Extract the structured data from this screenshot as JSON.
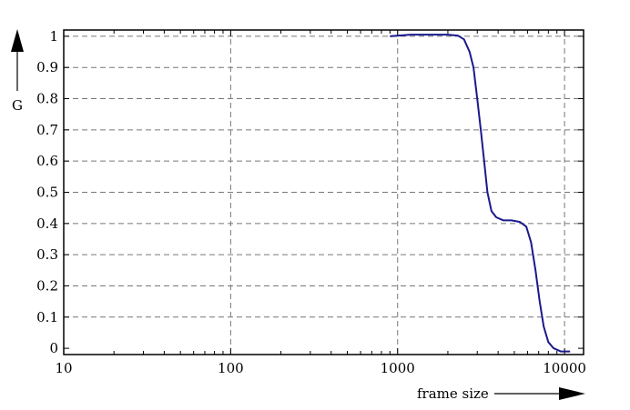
{
  "chart_data": {
    "type": "line",
    "xlabel": "frame size",
    "ylabel": "G",
    "x_scale": "log",
    "xlim": [
      10,
      13000
    ],
    "ylim": [
      -0.02,
      1.02
    ],
    "grid": true,
    "x_ticks": [
      {
        "value": 10,
        "label": "10"
      },
      {
        "value": 100,
        "label": "100"
      },
      {
        "value": 1000,
        "label": "1000"
      },
      {
        "value": 10000,
        "label": "10000"
      }
    ],
    "y_ticks": [
      {
        "value": 0,
        "label": "0"
      },
      {
        "value": 0.1,
        "label": "0.1"
      },
      {
        "value": 0.2,
        "label": "0.2"
      },
      {
        "value": 0.3,
        "label": "0.3"
      },
      {
        "value": 0.4,
        "label": "0.4"
      },
      {
        "value": 0.5,
        "label": "0.5"
      },
      {
        "value": 0.6,
        "label": "0.6"
      },
      {
        "value": 0.7,
        "label": "0.7"
      },
      {
        "value": 0.8,
        "label": "0.8"
      },
      {
        "value": 0.9,
        "label": "0.9"
      },
      {
        "value": 1,
        "label": "1"
      }
    ],
    "series": [
      {
        "color": "#1a1a8c",
        "points": [
          [
            900,
            1.0
          ],
          [
            1200,
            1.005
          ],
          [
            1600,
            1.005
          ],
          [
            2000,
            1.005
          ],
          [
            2300,
            1.002
          ],
          [
            2500,
            0.99
          ],
          [
            2700,
            0.95
          ],
          [
            2850,
            0.9
          ],
          [
            3000,
            0.8
          ],
          [
            3150,
            0.7
          ],
          [
            3300,
            0.6
          ],
          [
            3450,
            0.5
          ],
          [
            3650,
            0.44
          ],
          [
            3900,
            0.42
          ],
          [
            4300,
            0.41
          ],
          [
            4800,
            0.41
          ],
          [
            5400,
            0.405
          ],
          [
            5900,
            0.39
          ],
          [
            6300,
            0.34
          ],
          [
            6700,
            0.25
          ],
          [
            7100,
            0.15
          ],
          [
            7500,
            0.07
          ],
          [
            8000,
            0.02
          ],
          [
            8600,
            0.0
          ],
          [
            9500,
            -0.01
          ],
          [
            10800,
            -0.01
          ]
        ]
      }
    ]
  }
}
